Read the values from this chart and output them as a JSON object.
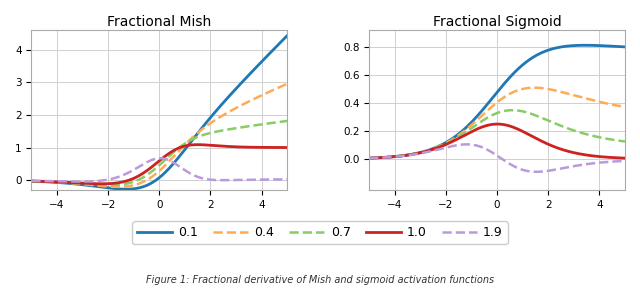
{
  "title_left": "Fractional Mish",
  "title_right": "Fractional Sigmoid",
  "alphas": [
    0.1,
    0.4,
    0.7,
    1.0,
    1.9
  ],
  "colors": [
    "#1f77b4",
    "#ffaa55",
    "#88cc66",
    "#cc2222",
    "#bb99dd"
  ],
  "linestyles": [
    "solid",
    "dashed",
    "dashed",
    "solid",
    "dashed"
  ],
  "linewidths": [
    2.0,
    1.8,
    1.8,
    2.0,
    1.8
  ],
  "mish_ylim": [
    -0.3,
    4.6
  ],
  "sigmoid_ylim": [
    -0.22,
    0.92
  ],
  "legend_labels": [
    "0.1",
    "0.4",
    "0.7",
    "1.0",
    "1.9"
  ],
  "caption": "Figure 1: Fractional derivative of Mish and sigmoid activation functions",
  "background_color": "#ffffff",
  "grid_color": "#d0d0d0"
}
